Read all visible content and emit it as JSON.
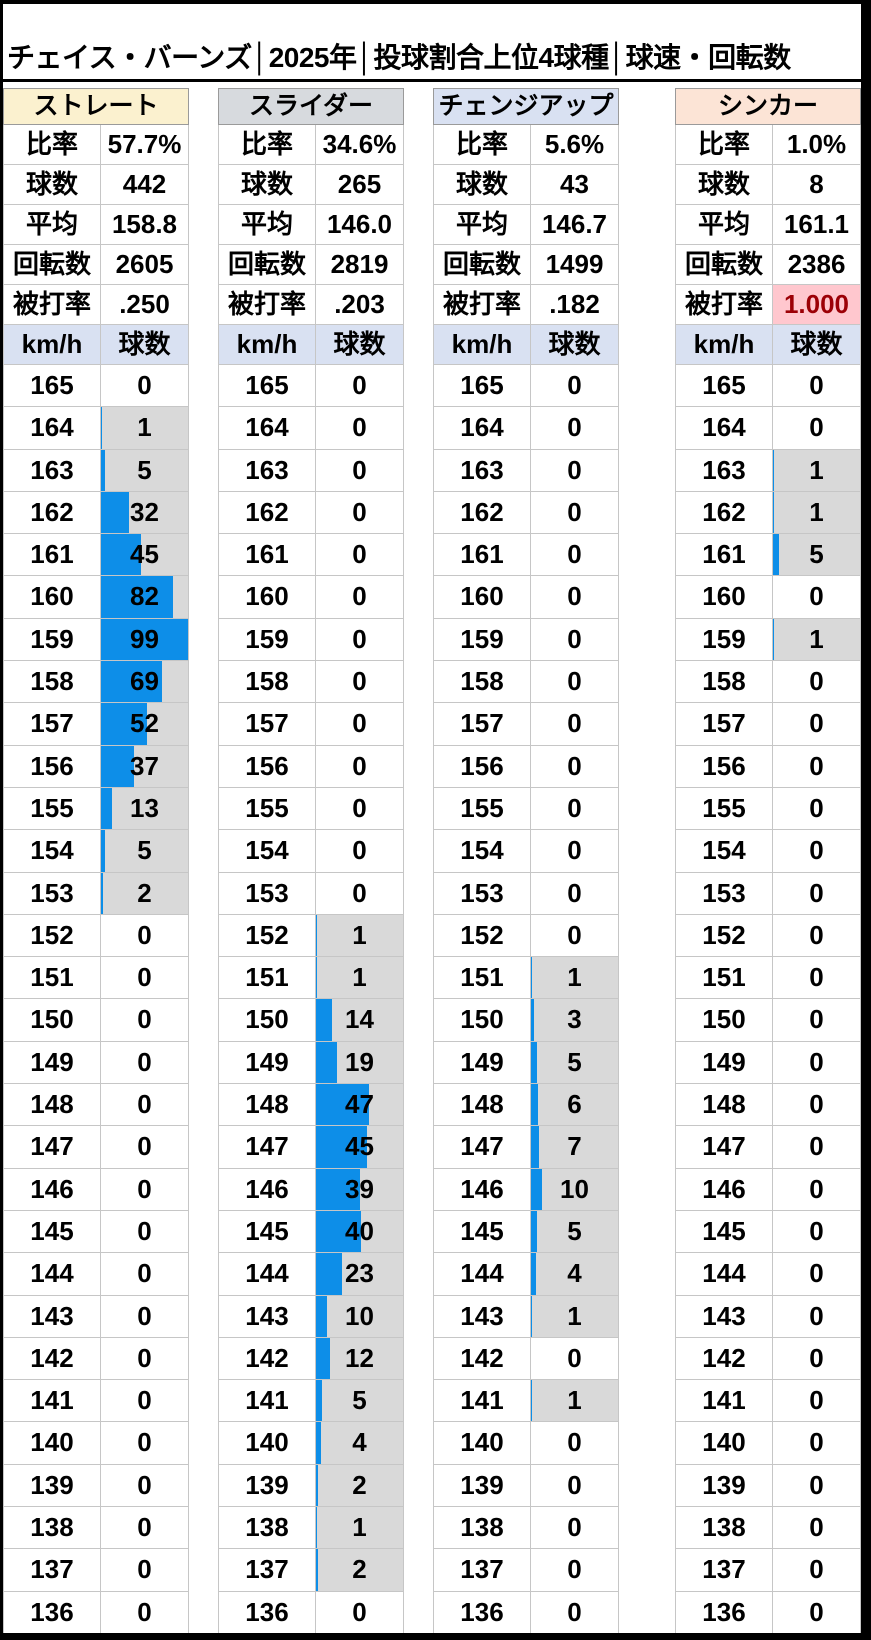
{
  "title": "チェイス・バーンズ│2025年│投球割合上位4球種│球速・回転数",
  "labels": {
    "stats": {
      "ratio": "比率",
      "count": "球数",
      "avg": "平均",
      "spin": "回転数",
      "baa": "被打率"
    },
    "hist": {
      "speed": "km/h",
      "count": "球数"
    }
  },
  "colors": {
    "bar_blue": "#0d8ee8",
    "nonzero_cell_bg": "#d9d9d9",
    "hist_header_bg": "#d9e1f2",
    "highlight_bg": "#ffc7ce",
    "highlight_text": "#9c0006",
    "header_straight": "#fbf1cf",
    "header_slider": "#d7dade",
    "header_changeup": "#d9e1f2",
    "header_sinker": "#fce4d6"
  },
  "chart_data": {
    "type": "bar",
    "orientation": "horizontal-histogram",
    "speeds": [
      165,
      164,
      163,
      162,
      161,
      160,
      159,
      158,
      157,
      156,
      155,
      154,
      153,
      152,
      151,
      150,
      149,
      148,
      147,
      146,
      145,
      144,
      143,
      142,
      141,
      140,
      139,
      138,
      137,
      136
    ],
    "speed_unit": "km/h",
    "pitches": [
      {
        "name": "ストレート",
        "header_bg": "#fbf1cf",
        "stats": {
          "ratio": "57.7%",
          "count": "442",
          "avg": "158.8",
          "spin": "2605",
          "baa": ".250"
        },
        "baa_highlight": false,
        "bar_max": 99,
        "hist": [
          0,
          1,
          5,
          32,
          45,
          82,
          99,
          69,
          52,
          37,
          13,
          5,
          2,
          0,
          0,
          0,
          0,
          0,
          0,
          0,
          0,
          0,
          0,
          0,
          0,
          0,
          0,
          0,
          0,
          0
        ]
      },
      {
        "name": "スライダー",
        "header_bg": "#d7dade",
        "stats": {
          "ratio": "34.6%",
          "count": "265",
          "avg": "146.0",
          "spin": "2819",
          "baa": ".203"
        },
        "baa_highlight": false,
        "bar_max": 77,
        "hist": [
          0,
          0,
          0,
          0,
          0,
          0,
          0,
          0,
          0,
          0,
          0,
          0,
          0,
          1,
          1,
          14,
          19,
          47,
          45,
          39,
          40,
          23,
          10,
          12,
          5,
          4,
          2,
          1,
          2,
          0
        ]
      },
      {
        "name": "チェンジアップ",
        "header_bg": "#d9e1f2",
        "stats": {
          "ratio": "5.6%",
          "count": "43",
          "avg": "146.7",
          "spin": "1499",
          "baa": ".182"
        },
        "baa_highlight": false,
        "bar_max": 77,
        "hist": [
          0,
          0,
          0,
          0,
          0,
          0,
          0,
          0,
          0,
          0,
          0,
          0,
          0,
          0,
          1,
          3,
          5,
          6,
          7,
          10,
          5,
          4,
          1,
          0,
          1,
          0,
          0,
          0,
          0,
          0
        ]
      },
      {
        "name": "シンカー",
        "header_bg": "#fce4d6",
        "stats": {
          "ratio": "1.0%",
          "count": "8",
          "avg": "161.1",
          "spin": "2386",
          "baa": "1.000"
        },
        "baa_highlight": true,
        "bar_max": 77,
        "hist": [
          0,
          0,
          1,
          1,
          5,
          0,
          1,
          0,
          0,
          0,
          0,
          0,
          0,
          0,
          0,
          0,
          0,
          0,
          0,
          0,
          0,
          0,
          0,
          0,
          0,
          0,
          0,
          0,
          0,
          0
        ]
      }
    ]
  }
}
